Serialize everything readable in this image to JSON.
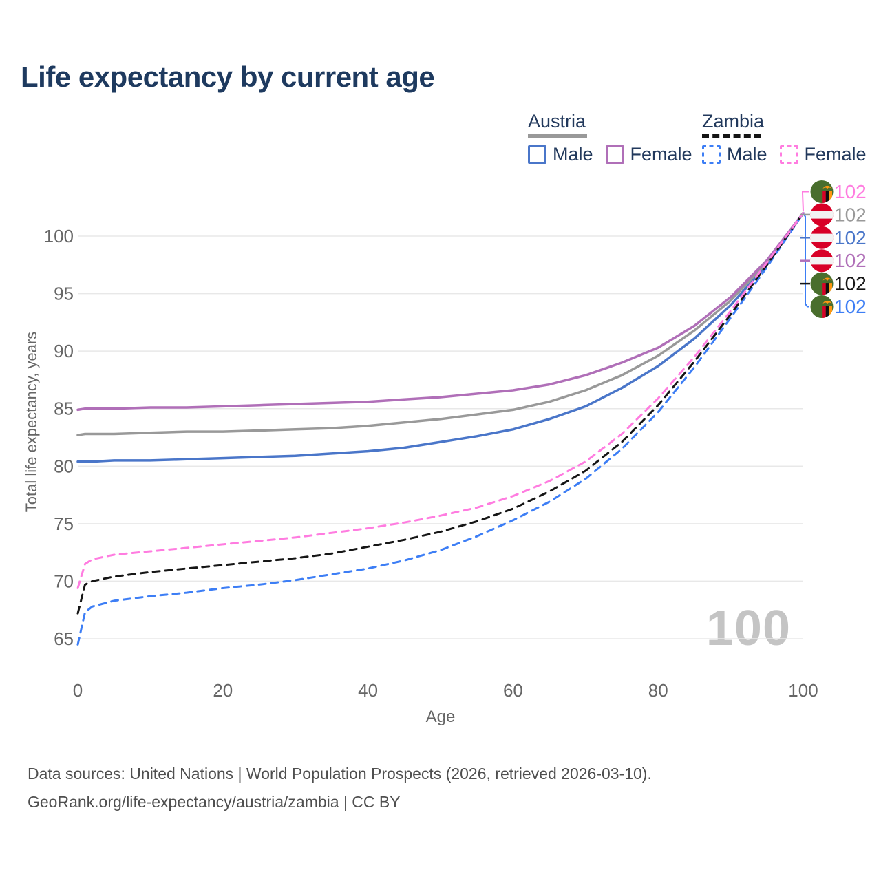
{
  "title": "Life expectancy by current age",
  "watermark_age": "100",
  "legend": {
    "groups": [
      {
        "country": "Austria",
        "line_style": "solid",
        "line_color": "#999999",
        "items": [
          {
            "label": "Male",
            "color": "#4a76c9"
          },
          {
            "label": "Female",
            "color": "#b06fb8"
          }
        ]
      },
      {
        "country": "Zambia",
        "line_style": "dashed",
        "line_color": "#141414",
        "items": [
          {
            "label": "Male",
            "color": "#3d7ef5"
          },
          {
            "label": "Female",
            "color": "#ff7ce0"
          }
        ]
      }
    ]
  },
  "footer": {
    "line1": "Data sources: United Nations | World Population Prospects (2026, retrieved 2026-03-10).",
    "line2": "GeoRank.org/life-expectancy/austria/zambia | CC BY"
  },
  "colors": {
    "grid": "#e8e8e8",
    "axis_text": "#666666",
    "title_text": "#1e3a5f",
    "legend_text": "#22395c",
    "watermark": "#c4c4c4",
    "flag_austria_red": "#d80027",
    "flag_austria_white": "#f2f2f2",
    "flag_zambia_green": "#496e2d",
    "flag_zambia_red": "#d80027",
    "flag_zambia_black": "#111111",
    "flag_zambia_orange": "#ff9811"
  },
  "chart_data": {
    "type": "line",
    "title": "Life expectancy by current age",
    "xlabel": "Age",
    "ylabel": "Total life expectancy, years",
    "x_ticks": [
      0,
      20,
      40,
      60,
      80,
      100
    ],
    "y_ticks": [
      65,
      70,
      75,
      80,
      85,
      90,
      95,
      100
    ],
    "xlim": [
      0,
      100
    ],
    "ylim": [
      63.5,
      103
    ],
    "grid": "horizontal",
    "legend_position": "top-right",
    "series": [
      {
        "name": "Austria Male",
        "country": "Austria",
        "sex": "male",
        "color": "#4a76c9",
        "style": "solid",
        "end_label": "102",
        "end_row": 2,
        "points": [
          [
            0,
            80.4
          ],
          [
            1,
            80.4
          ],
          [
            2,
            80.4
          ],
          [
            5,
            80.5
          ],
          [
            10,
            80.5
          ],
          [
            15,
            80.6
          ],
          [
            20,
            80.7
          ],
          [
            25,
            80.8
          ],
          [
            30,
            80.9
          ],
          [
            35,
            81.1
          ],
          [
            40,
            81.3
          ],
          [
            45,
            81.6
          ],
          [
            50,
            82.1
          ],
          [
            55,
            82.6
          ],
          [
            60,
            83.2
          ],
          [
            65,
            84.1
          ],
          [
            70,
            85.2
          ],
          [
            75,
            86.8
          ],
          [
            80,
            88.7
          ],
          [
            85,
            91.1
          ],
          [
            90,
            94.0
          ],
          [
            95,
            97.5
          ],
          [
            100,
            102
          ]
        ]
      },
      {
        "name": "Austria",
        "country": "Austria",
        "sex": "both",
        "color": "#999999",
        "style": "solid",
        "end_label": "102",
        "end_row": 1,
        "points": [
          [
            0,
            82.7
          ],
          [
            1,
            82.8
          ],
          [
            2,
            82.8
          ],
          [
            5,
            82.8
          ],
          [
            10,
            82.9
          ],
          [
            15,
            83.0
          ],
          [
            20,
            83.0
          ],
          [
            25,
            83.1
          ],
          [
            30,
            83.2
          ],
          [
            35,
            83.3
          ],
          [
            40,
            83.5
          ],
          [
            45,
            83.8
          ],
          [
            50,
            84.1
          ],
          [
            55,
            84.5
          ],
          [
            60,
            84.9
          ],
          [
            65,
            85.6
          ],
          [
            70,
            86.6
          ],
          [
            75,
            87.9
          ],
          [
            80,
            89.6
          ],
          [
            85,
            91.8
          ],
          [
            90,
            94.4
          ],
          [
            95,
            97.7
          ],
          [
            100,
            102
          ]
        ]
      },
      {
        "name": "Austria Female",
        "country": "Austria",
        "sex": "female",
        "color": "#b06fb8",
        "style": "solid",
        "end_label": "102",
        "end_row": 3,
        "points": [
          [
            0,
            84.9
          ],
          [
            1,
            85.0
          ],
          [
            2,
            85.0
          ],
          [
            5,
            85.0
          ],
          [
            10,
            85.1
          ],
          [
            15,
            85.1
          ],
          [
            20,
            85.2
          ],
          [
            25,
            85.3
          ],
          [
            30,
            85.4
          ],
          [
            35,
            85.5
          ],
          [
            40,
            85.6
          ],
          [
            45,
            85.8
          ],
          [
            50,
            86.0
          ],
          [
            55,
            86.3
          ],
          [
            60,
            86.6
          ],
          [
            65,
            87.1
          ],
          [
            70,
            87.9
          ],
          [
            75,
            89.0
          ],
          [
            80,
            90.3
          ],
          [
            85,
            92.2
          ],
          [
            90,
            94.7
          ],
          [
            95,
            97.9
          ],
          [
            100,
            102
          ]
        ]
      },
      {
        "name": "Zambia Male",
        "country": "Zambia",
        "sex": "male",
        "color": "#3d7ef5",
        "style": "dashed",
        "end_label": "102",
        "end_row": 5,
        "points": [
          [
            0,
            64.5
          ],
          [
            1,
            67.3
          ],
          [
            2,
            67.8
          ],
          [
            5,
            68.3
          ],
          [
            10,
            68.7
          ],
          [
            15,
            69.0
          ],
          [
            20,
            69.4
          ],
          [
            25,
            69.7
          ],
          [
            30,
            70.1
          ],
          [
            35,
            70.6
          ],
          [
            40,
            71.1
          ],
          [
            45,
            71.8
          ],
          [
            50,
            72.7
          ],
          [
            55,
            73.9
          ],
          [
            60,
            75.3
          ],
          [
            65,
            76.9
          ],
          [
            70,
            78.9
          ],
          [
            75,
            81.5
          ],
          [
            80,
            84.7
          ],
          [
            85,
            88.6
          ],
          [
            90,
            92.9
          ],
          [
            95,
            97.3
          ],
          [
            100,
            102
          ]
        ]
      },
      {
        "name": "Zambia",
        "country": "Zambia",
        "sex": "both",
        "color": "#161616",
        "style": "dashed",
        "end_label": "102",
        "end_row": 4,
        "points": [
          [
            0,
            67.2
          ],
          [
            1,
            69.7
          ],
          [
            2,
            70.0
          ],
          [
            5,
            70.4
          ],
          [
            10,
            70.8
          ],
          [
            15,
            71.1
          ],
          [
            20,
            71.4
          ],
          [
            25,
            71.7
          ],
          [
            30,
            72.0
          ],
          [
            35,
            72.4
          ],
          [
            40,
            73.0
          ],
          [
            45,
            73.6
          ],
          [
            50,
            74.3
          ],
          [
            55,
            75.2
          ],
          [
            60,
            76.3
          ],
          [
            65,
            77.8
          ],
          [
            70,
            79.6
          ],
          [
            75,
            82.1
          ],
          [
            80,
            85.3
          ],
          [
            85,
            89.1
          ],
          [
            90,
            93.2
          ],
          [
            95,
            97.5
          ],
          [
            100,
            102
          ]
        ]
      },
      {
        "name": "Zambia Female",
        "country": "Zambia",
        "sex": "female",
        "color": "#ff7ce0",
        "style": "dashed",
        "end_label": "102",
        "end_row": 0,
        "points": [
          [
            0,
            69.4
          ],
          [
            1,
            71.5
          ],
          [
            2,
            71.9
          ],
          [
            5,
            72.3
          ],
          [
            10,
            72.6
          ],
          [
            15,
            72.9
          ],
          [
            20,
            73.2
          ],
          [
            25,
            73.5
          ],
          [
            30,
            73.8
          ],
          [
            35,
            74.2
          ],
          [
            40,
            74.6
          ],
          [
            45,
            75.1
          ],
          [
            50,
            75.7
          ],
          [
            55,
            76.4
          ],
          [
            60,
            77.4
          ],
          [
            65,
            78.7
          ],
          [
            70,
            80.4
          ],
          [
            75,
            82.8
          ],
          [
            80,
            85.9
          ],
          [
            85,
            89.5
          ],
          [
            90,
            93.5
          ],
          [
            95,
            97.7
          ],
          [
            100,
            102
          ]
        ]
      }
    ]
  }
}
